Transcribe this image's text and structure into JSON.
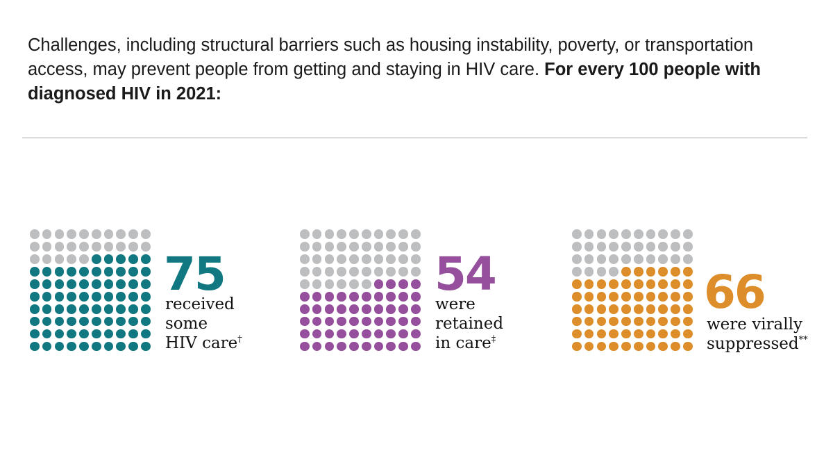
{
  "intro": {
    "text": "Challenges, including structural barriers such as housing instability, poverty, or transportation access, may prevent people from getting and staying in HIV care. ",
    "bold": "For every 100 people with diagnosed HIV in 2021:"
  },
  "colors": {
    "inactive_dot": "#bcbec0",
    "care": "#117780",
    "retained": "#964f9c",
    "suppressed": "#dd8e2b"
  },
  "stats": [
    {
      "value": "75",
      "count": 75,
      "total": 100,
      "color": "#117780",
      "lines": [
        "received",
        "some",
        "HIV care"
      ],
      "mark": "†"
    },
    {
      "value": "54",
      "count": 54,
      "total": 100,
      "color": "#964f9c",
      "lines": [
        "were",
        "retained",
        "in care"
      ],
      "mark": "‡"
    },
    {
      "value": "66",
      "count": 66,
      "total": 100,
      "color": "#dd8e2b",
      "lines": [
        "were virally",
        "suppressed"
      ],
      "mark": "**"
    }
  ]
}
